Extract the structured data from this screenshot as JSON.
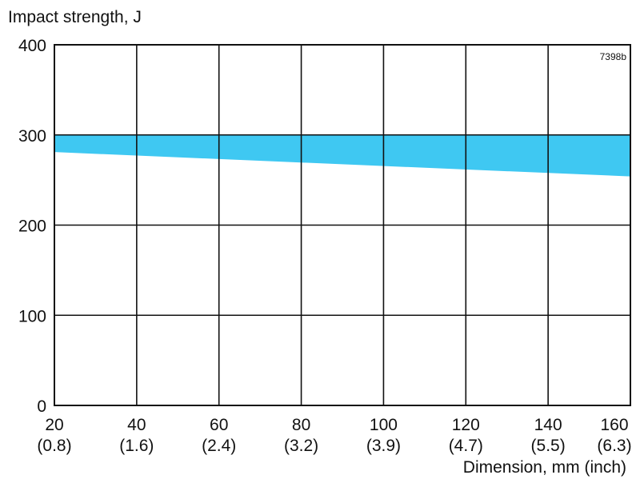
{
  "chart_data": {
    "type": "area",
    "ylabel": "Impact strength, J",
    "xlabel": "Dimension, mm (inch)",
    "figure_code": "7398b",
    "xlim": [
      20,
      160
    ],
    "ylim": [
      0,
      400
    ],
    "grid": true,
    "x_ticks": [
      {
        "value": 20,
        "label": "20",
        "sublabel": "(0.8)"
      },
      {
        "value": 40,
        "label": "40",
        "sublabel": "(1.6)"
      },
      {
        "value": 60,
        "label": "60",
        "sublabel": "(2.4)"
      },
      {
        "value": 80,
        "label": "80",
        "sublabel": "(3.2)"
      },
      {
        "value": 100,
        "label": "100",
        "sublabel": "(3.9)"
      },
      {
        "value": 120,
        "label": "120",
        "sublabel": "(4.7)"
      },
      {
        "value": 140,
        "label": "140",
        "sublabel": "(5.5)"
      },
      {
        "value": 160,
        "label": "160",
        "sublabel": "(6.3)"
      }
    ],
    "y_ticks": [
      {
        "value": 0,
        "label": "0"
      },
      {
        "value": 100,
        "label": "100"
      },
      {
        "value": 200,
        "label": "200"
      },
      {
        "value": 300,
        "label": "300"
      },
      {
        "value": 400,
        "label": "400"
      }
    ],
    "band": {
      "color": "#3fc8f2",
      "x": [
        20,
        160
      ],
      "upper": [
        300,
        300
      ],
      "lower": [
        281,
        254
      ]
    }
  }
}
